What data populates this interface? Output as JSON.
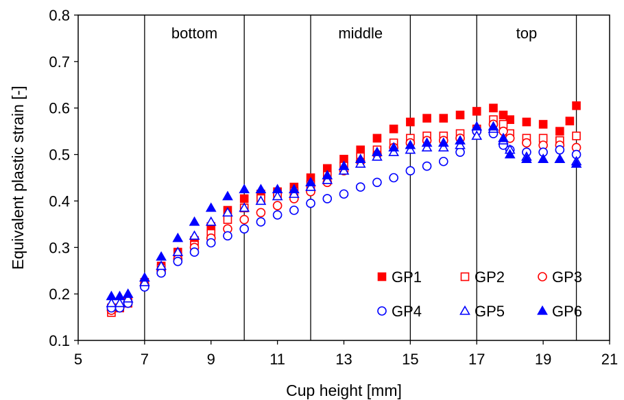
{
  "chart_data": {
    "type": "scatter",
    "title": "",
    "xlabel": "Cup height [mm]",
    "ylabel": "Equivalent plastic strain [-]",
    "xlim": [
      5,
      21
    ],
    "ylim": [
      0.1,
      0.8
    ],
    "xticks": [
      5,
      7,
      9,
      11,
      13,
      15,
      17,
      19,
      21
    ],
    "yticks": [
      0.1,
      0.2,
      0.3,
      0.4,
      0.5,
      0.6,
      0.7,
      0.8
    ],
    "grid": false,
    "legend_position": "bottom-right",
    "region_lines": [
      7,
      10,
      12,
      15,
      17,
      20
    ],
    "regions": [
      {
        "label": "bottom",
        "x": 8.5
      },
      {
        "label": "middle",
        "x": 13.5
      },
      {
        "label": "top",
        "x": 18.5
      }
    ],
    "series": [
      {
        "name": "GP1",
        "color": "#ff0000",
        "marker": "square",
        "filled": true,
        "x": [
          6.0,
          6.25,
          6.5,
          7.0,
          7.5,
          8.0,
          8.5,
          9.0,
          9.5,
          10.0,
          10.5,
          11.0,
          11.5,
          12.0,
          12.5,
          13.0,
          13.5,
          14.0,
          14.5,
          15.0,
          15.5,
          16.0,
          16.5,
          17.0,
          17.5,
          17.8,
          18.0,
          18.5,
          19.0,
          19.5,
          19.8,
          20.0
        ],
        "y": [
          0.17,
          0.17,
          0.185,
          0.225,
          0.26,
          0.29,
          0.315,
          0.345,
          0.38,
          0.405,
          0.415,
          0.42,
          0.43,
          0.45,
          0.47,
          0.49,
          0.51,
          0.535,
          0.555,
          0.57,
          0.578,
          0.578,
          0.585,
          0.593,
          0.6,
          0.585,
          0.575,
          0.57,
          0.565,
          0.55,
          0.572,
          0.605
        ]
      },
      {
        "name": "GP2",
        "color": "#ff0000",
        "marker": "square",
        "filled": false,
        "x": [
          6.0,
          6.25,
          6.5,
          7.0,
          7.5,
          8.0,
          8.5,
          9.0,
          9.5,
          10.0,
          10.5,
          11.0,
          11.5,
          12.0,
          12.5,
          13.0,
          13.5,
          14.0,
          14.5,
          15.0,
          15.5,
          16.0,
          16.5,
          17.0,
          17.5,
          17.8,
          18.0,
          18.5,
          19.0,
          19.5,
          20.0
        ],
        "y": [
          0.16,
          0.17,
          0.18,
          0.22,
          0.255,
          0.28,
          0.305,
          0.33,
          0.36,
          0.385,
          0.405,
          0.415,
          0.42,
          0.435,
          0.455,
          0.475,
          0.495,
          0.51,
          0.525,
          0.535,
          0.54,
          0.54,
          0.545,
          0.555,
          0.575,
          0.565,
          0.545,
          0.535,
          0.535,
          0.53,
          0.54
        ]
      },
      {
        "name": "GP3",
        "color": "#ff0000",
        "marker": "circle",
        "filled": false,
        "x": [
          6.0,
          6.25,
          6.5,
          7.0,
          7.5,
          8.0,
          8.5,
          9.0,
          9.5,
          10.0,
          10.5,
          11.0,
          11.5,
          12.0,
          12.5,
          13.0,
          13.5,
          14.0,
          14.5,
          15.0,
          15.5,
          16.0,
          16.5,
          17.0,
          17.5,
          17.8,
          18.0,
          18.5,
          19.0,
          19.5,
          20.0
        ],
        "y": [
          0.165,
          0.17,
          0.18,
          0.22,
          0.25,
          0.275,
          0.3,
          0.32,
          0.34,
          0.36,
          0.375,
          0.39,
          0.405,
          0.42,
          0.44,
          0.465,
          0.485,
          0.5,
          0.515,
          0.525,
          0.53,
          0.53,
          0.535,
          0.55,
          0.565,
          0.55,
          0.535,
          0.525,
          0.52,
          0.52,
          0.515
        ]
      },
      {
        "name": "GP4",
        "color": "#0000ff",
        "marker": "circle",
        "filled": false,
        "x": [
          6.0,
          6.25,
          6.5,
          7.0,
          7.5,
          8.0,
          8.5,
          9.0,
          9.5,
          10.0,
          10.5,
          11.0,
          11.5,
          12.0,
          12.5,
          13.0,
          13.5,
          14.0,
          14.5,
          15.0,
          15.5,
          16.0,
          16.5,
          17.0,
          17.5,
          17.8,
          18.0,
          18.5,
          19.0,
          19.5,
          20.0
        ],
        "y": [
          0.17,
          0.17,
          0.18,
          0.215,
          0.245,
          0.27,
          0.29,
          0.31,
          0.325,
          0.34,
          0.355,
          0.37,
          0.38,
          0.395,
          0.405,
          0.415,
          0.43,
          0.44,
          0.45,
          0.465,
          0.475,
          0.485,
          0.505,
          0.55,
          0.545,
          0.52,
          0.51,
          0.505,
          0.505,
          0.51,
          0.5
        ]
      },
      {
        "name": "GP5",
        "color": "#0000ff",
        "marker": "triangle",
        "filled": false,
        "x": [
          6.0,
          6.25,
          6.5,
          7.0,
          7.5,
          8.0,
          8.5,
          9.0,
          9.5,
          10.0,
          10.5,
          11.0,
          11.5,
          12.0,
          12.5,
          13.0,
          13.5,
          14.0,
          14.5,
          15.0,
          15.5,
          16.0,
          16.5,
          17.0,
          17.5,
          17.8,
          18.0,
          18.5,
          19.0,
          19.5,
          20.0
        ],
        "y": [
          0.18,
          0.18,
          0.19,
          0.225,
          0.26,
          0.29,
          0.325,
          0.355,
          0.375,
          0.385,
          0.4,
          0.41,
          0.415,
          0.43,
          0.445,
          0.465,
          0.48,
          0.495,
          0.505,
          0.51,
          0.515,
          0.515,
          0.52,
          0.54,
          0.555,
          0.53,
          0.51,
          0.495,
          0.49,
          0.49,
          0.485
        ]
      },
      {
        "name": "GP6",
        "color": "#0000ff",
        "marker": "triangle",
        "filled": true,
        "x": [
          6.0,
          6.25,
          6.5,
          7.0,
          7.5,
          8.0,
          8.5,
          9.0,
          9.5,
          10.0,
          10.5,
          11.0,
          11.5,
          12.0,
          12.5,
          13.0,
          13.5,
          14.0,
          14.5,
          15.0,
          15.5,
          16.0,
          16.5,
          17.0,
          17.5,
          17.8,
          18.0,
          18.5,
          19.0,
          19.5,
          20.0
        ],
        "y": [
          0.195,
          0.195,
          0.2,
          0.235,
          0.28,
          0.32,
          0.355,
          0.385,
          0.41,
          0.425,
          0.425,
          0.425,
          0.425,
          0.44,
          0.455,
          0.475,
          0.49,
          0.505,
          0.515,
          0.52,
          0.525,
          0.525,
          0.53,
          0.56,
          0.56,
          0.535,
          0.5,
          0.49,
          0.49,
          0.49,
          0.48
        ]
      }
    ]
  }
}
